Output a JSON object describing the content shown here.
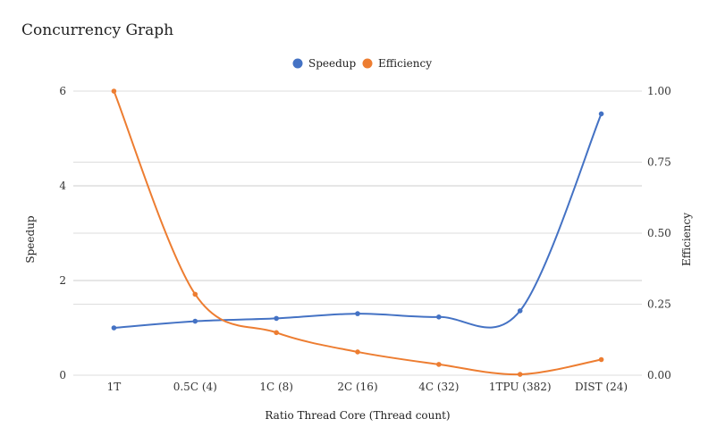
{
  "chart_data": {
    "type": "line",
    "title": "Concurrency Graph",
    "xlabel": "Ratio Thread Core (Thread count)",
    "ylabel": "Speedup",
    "y2label": "Efficiency",
    "categories": [
      "1T",
      "0.5C (4)",
      "1C (8)",
      "2C (16)",
      "4C (32)",
      "1TPU (382)",
      "DIST (24)"
    ],
    "ylim": [
      0,
      6
    ],
    "y2lim": [
      0,
      1
    ],
    "yticks": [
      "0",
      "2",
      "4",
      "6"
    ],
    "y2ticks": [
      "0.00",
      "0.25",
      "0.50",
      "0.75",
      "1.00"
    ],
    "legend_position": "top",
    "grid": true,
    "series": [
      {
        "name": "Speedup",
        "axis": "left",
        "color": "#4472c4",
        "values": [
          1.0,
          1.14,
          1.2,
          1.3,
          1.23,
          1.36,
          5.52
        ]
      },
      {
        "name": "Efficiency",
        "axis": "right",
        "color": "#ed7d31",
        "values": [
          1.0,
          0.285,
          0.15,
          0.082,
          0.038,
          0.003,
          0.055
        ]
      }
    ]
  }
}
